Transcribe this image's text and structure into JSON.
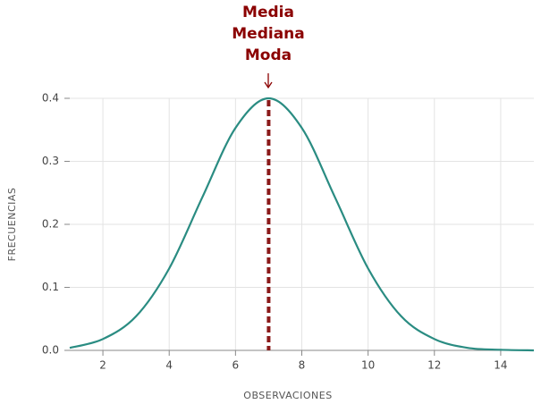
{
  "chart_data": {
    "type": "line",
    "annotation": [
      "Media",
      "Mediana",
      "Moda"
    ],
    "xlabel": "OBSERVACIONES",
    "ylabel": "FRECUENCIAS",
    "x": [
      1,
      2,
      3,
      4,
      5,
      6,
      7,
      8,
      9,
      10,
      11,
      12,
      13,
      14,
      15
    ],
    "series": [
      {
        "name": "Frecuencia",
        "color": "#2a8c82",
        "values": [
          0.004,
          0.018,
          0.054,
          0.13,
          0.243,
          0.353,
          0.4,
          0.353,
          0.243,
          0.13,
          0.054,
          0.018,
          0.004,
          0.001,
          0.0
        ]
      }
    ],
    "reference_x": 7,
    "reference_color": "#8b1a1a",
    "xlim": [
      1,
      15
    ],
    "xticks": [
      2,
      4,
      6,
      8,
      10,
      12,
      14
    ],
    "ylim": [
      0,
      0.4
    ],
    "yticks": [
      {
        "value": 0,
        "label": "0.0"
      },
      0.1,
      0.2,
      0.3,
      0.4
    ],
    "grid": true
  }
}
